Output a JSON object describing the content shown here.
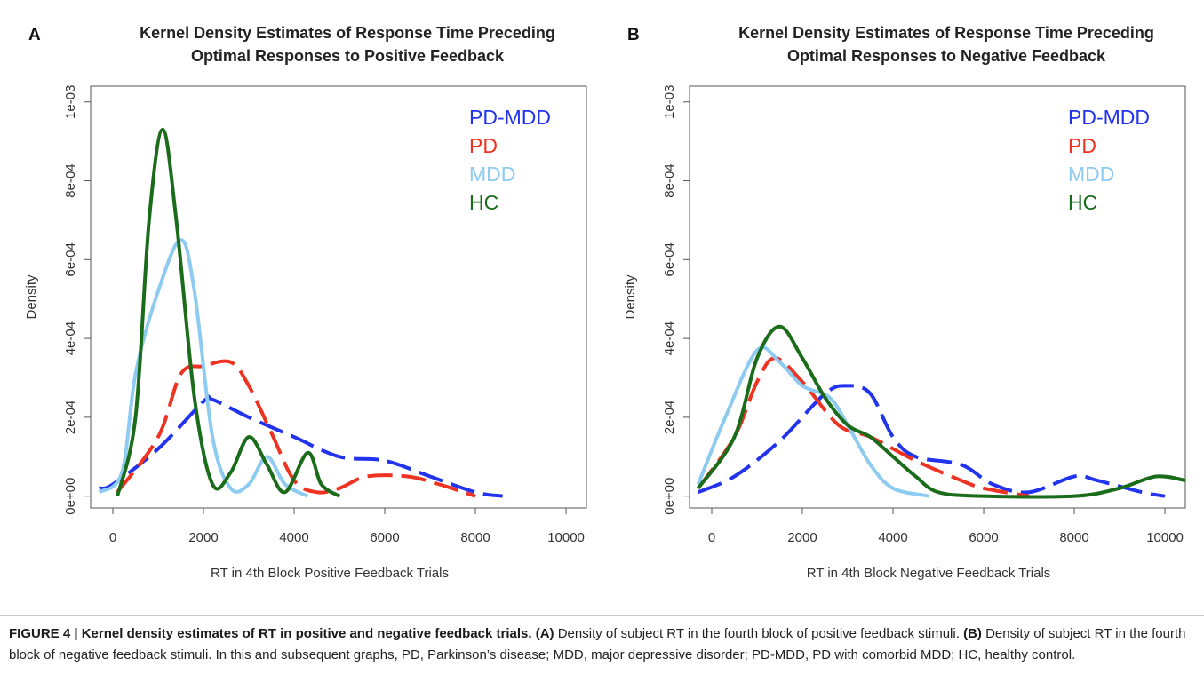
{
  "chart_data": [
    {
      "type": "line",
      "panel_label": "A",
      "title": [
        "Kernel Density Estimates of Response Time Preceding",
        "Optimal Responses to Positive Feedback"
      ],
      "x_label": "RT in 4th Block Positive Feedback Trials",
      "y_label": "Density",
      "xlim": [
        -490,
        10450
      ],
      "ylim": [
        -3e-05,
        0.00104
      ],
      "xticks": [
        0,
        2000,
        4000,
        6000,
        8000,
        10000
      ],
      "yticks": [
        {
          "value": 0,
          "label": "0e+00"
        },
        {
          "value": 0.0002,
          "label": "2e-04"
        },
        {
          "value": 0.0004,
          "label": "4e-04"
        },
        {
          "value": 0.0006,
          "label": "6e-04"
        },
        {
          "value": 0.0008,
          "label": "8e-04"
        },
        {
          "value": 0.001,
          "label": "1e-03"
        }
      ],
      "legend": "upper right",
      "series": [
        {
          "name": "PD-MDD",
          "color": "#2233ee",
          "line_style": "dashed",
          "x": [
            -300,
            0,
            1000,
            2000,
            2200,
            3000,
            4000,
            5000,
            6000,
            7000,
            8000,
            8600
          ],
          "values": [
            2e-05,
            3e-05,
            0.00012,
            0.00024,
            0.000245,
            0.0002,
            0.00015,
            0.0001,
            9e-05,
            5e-05,
            1e-05,
            0
          ]
        },
        {
          "name": "PD",
          "color": "#ee3322",
          "line_style": "dashed",
          "x": [
            100,
            1000,
            1500,
            2000,
            2600,
            3000,
            3500,
            4000,
            4500,
            5000,
            5600,
            6500,
            7200,
            8000
          ],
          "values": [
            1e-05,
            0.00015,
            0.00031,
            0.00033,
            0.00034,
            0.00028,
            0.00016,
            4e-05,
            1e-05,
            2e-05,
            5e-05,
            5e-05,
            3e-05,
            0
          ]
        },
        {
          "name": "MDD",
          "color": "#8ecbf0",
          "line_style": "solid",
          "x": [
            -300,
            200,
            500,
            1000,
            1500,
            1800,
            2200,
            2600,
            3000,
            3400,
            3800,
            4300
          ],
          "values": [
            1e-05,
            6e-05,
            0.00031,
            0.00052,
            0.00065,
            0.00052,
            0.00015,
            2e-05,
            3e-05,
            0.0001,
            3e-05,
            0
          ]
        },
        {
          "name": "HC",
          "color": "#1a6b1a",
          "line_style": "solid",
          "x": [
            100,
            500,
            800,
            1100,
            1400,
            1800,
            2200,
            2600,
            3000,
            3400,
            3800,
            4300,
            4600,
            5000
          ],
          "values": [
            0,
            0.0002,
            0.0007,
            0.00093,
            0.0007,
            0.00025,
            3e-05,
            6e-05,
            0.00015,
            8e-05,
            1e-05,
            0.00011,
            3e-05,
            0
          ]
        }
      ]
    },
    {
      "type": "line",
      "panel_label": "B",
      "title": [
        "Kernel Density Estimates of Response Time Preceding",
        "Optimal Responses to Negative Feedback"
      ],
      "x_label": "RT in 4th Block Negative Feedback Trials",
      "y_label": "Density",
      "xlim": [
        -490,
        10450
      ],
      "ylim": [
        -3e-05,
        0.00104
      ],
      "xticks": [
        0,
        2000,
        4000,
        6000,
        8000,
        10000
      ],
      "yticks": [
        {
          "value": 0,
          "label": "0e+00"
        },
        {
          "value": 0.0002,
          "label": "2e-04"
        },
        {
          "value": 0.0004,
          "label": "4e-04"
        },
        {
          "value": 0.0006,
          "label": "6e-04"
        },
        {
          "value": 0.0008,
          "label": "8e-04"
        },
        {
          "value": 0.001,
          "label": "1e-03"
        }
      ],
      "legend": "upper right",
      "series": [
        {
          "name": "PD-MDD",
          "color": "#2233ee",
          "line_style": "dashed",
          "x": [
            -300,
            500,
            1500,
            2500,
            3000,
            3500,
            4000,
            4500,
            5500,
            6200,
            7000,
            8000,
            8500,
            9500,
            10000
          ],
          "values": [
            1e-05,
            5e-05,
            0.00014,
            0.00026,
            0.00028,
            0.00026,
            0.00015,
            0.0001,
            8e-05,
            3e-05,
            1e-05,
            5e-05,
            4e-05,
            1e-05,
            0
          ]
        },
        {
          "name": "PD",
          "color": "#ee3322",
          "line_style": "dashed",
          "x": [
            -300,
            500,
            1000,
            1400,
            2000,
            2800,
            3500,
            4500,
            5500,
            6000,
            7000
          ],
          "values": [
            2e-05,
            0.00015,
            0.00029,
            0.00035,
            0.00029,
            0.00018,
            0.00015,
            9e-05,
            4e-05,
            2e-05,
            0
          ]
        },
        {
          "name": "MDD",
          "color": "#8ecbf0",
          "line_style": "solid",
          "x": [
            -300,
            300,
            1000,
            1500,
            2000,
            2600,
            3000,
            3500,
            4000,
            4800
          ],
          "values": [
            3e-05,
            0.0002,
            0.00037,
            0.00034,
            0.00028,
            0.00025,
            0.00018,
            8e-05,
            2e-05,
            0
          ]
        },
        {
          "name": "HC",
          "color": "#1a6b1a",
          "line_style": "solid",
          "x": [
            -300,
            500,
            1000,
            1500,
            2000,
            2500,
            3000,
            3500,
            4000,
            4500,
            5000,
            6000,
            8000,
            9000,
            9800,
            10450
          ],
          "values": [
            2e-05,
            0.00015,
            0.00035,
            0.00043,
            0.00035,
            0.00025,
            0.00018,
            0.00015,
            0.0001,
            5e-05,
            1e-05,
            0,
            0,
            2e-05,
            5e-05,
            4e-05
          ]
        }
      ]
    }
  ],
  "caption": {
    "label": "FIGURE 4 |",
    "title": "Kernel density estimates of RT in positive and negative feedback trials.",
    "part_a_label": "(A)",
    "part_a_text": "Density of subject RT in the fourth block of positive feedback stimuli.",
    "part_b_label": "(B)",
    "part_b_text": "Density of subject RT in the fourth block of negative feedback stimuli. In this and subsequent graphs, PD, Parkinson’s disease; MDD, major depressive disorder; PD-MDD, PD with comorbid MDD; HC, healthy control."
  }
}
